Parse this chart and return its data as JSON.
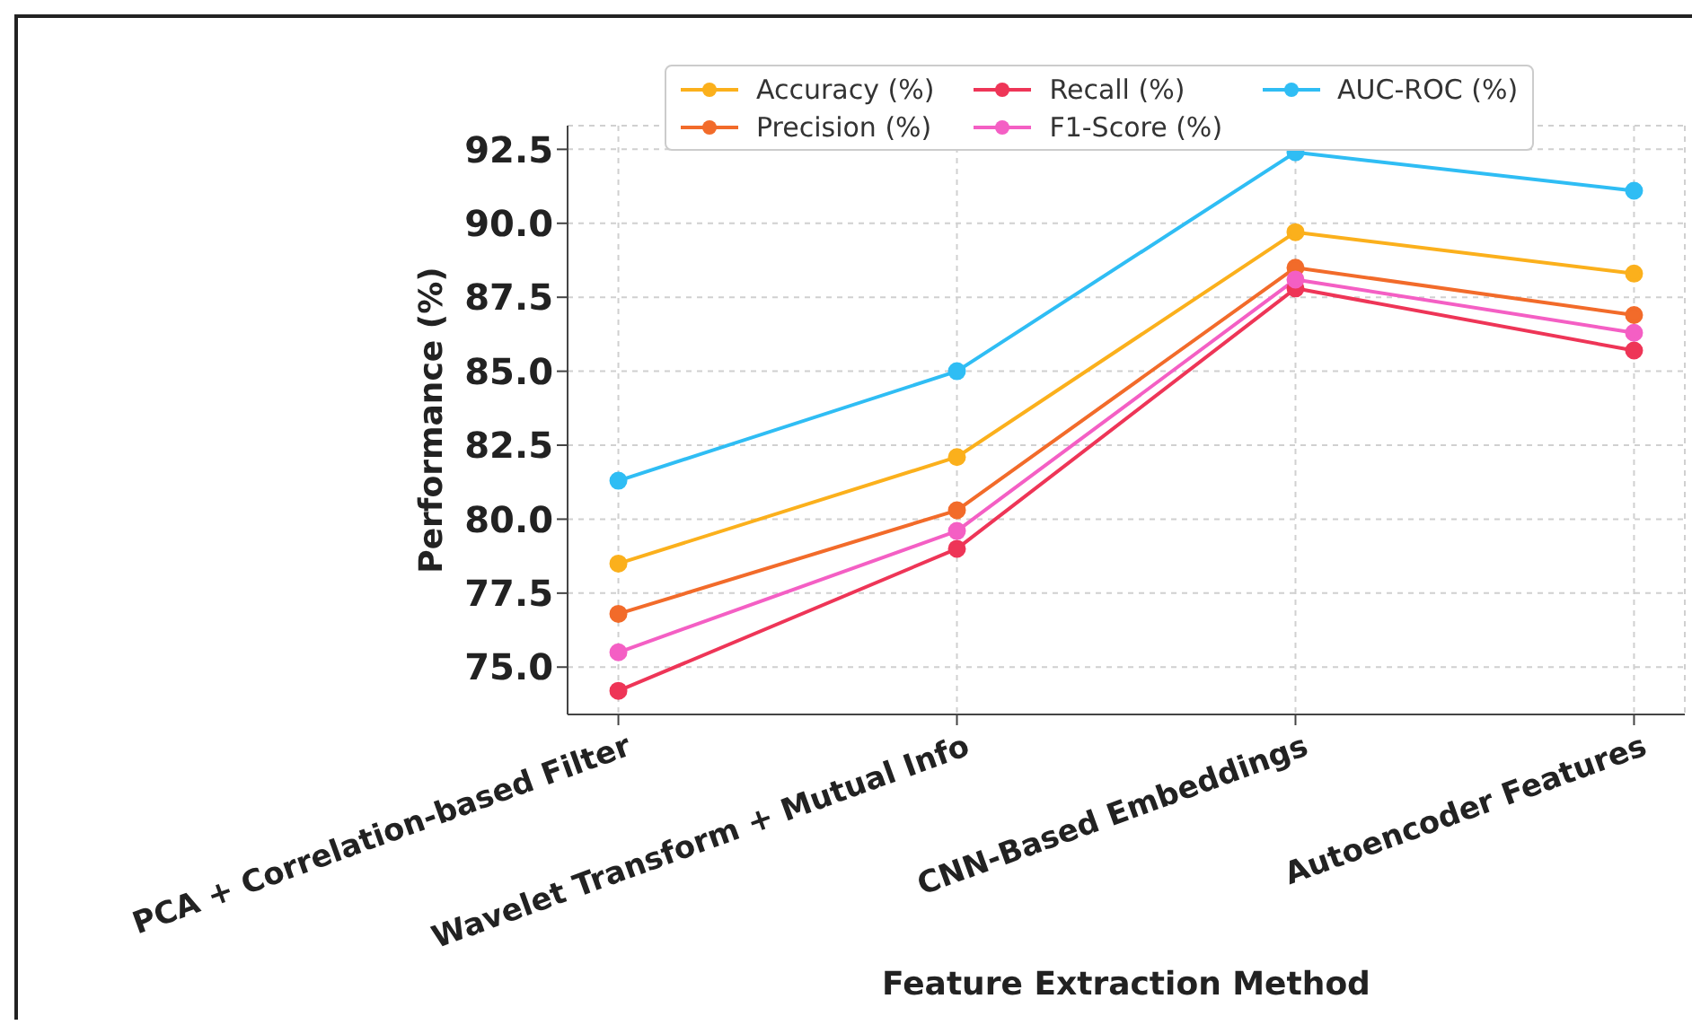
{
  "chart_data": {
    "type": "line",
    "xlabel": "Feature Extraction Method",
    "ylabel": "Performance (%)",
    "categories": [
      "PCA + Correlation-based Filter",
      "Wavelet Transform + Mutual Info",
      "CNN-Based Embeddings",
      "Autoencoder Features"
    ],
    "series": [
      {
        "name": "Accuracy (%)",
        "color": "#fbb01c",
        "values": [
          78.5,
          82.1,
          89.7,
          88.3
        ]
      },
      {
        "name": "Precision (%)",
        "color": "#f26b2a",
        "values": [
          76.8,
          80.3,
          88.5,
          86.9
        ]
      },
      {
        "name": "Recall (%)",
        "color": "#ee3557",
        "values": [
          74.2,
          79.0,
          87.8,
          85.7
        ]
      },
      {
        "name": "F1-Score (%)",
        "color": "#f45fc4",
        "values": [
          75.5,
          79.6,
          88.1,
          86.3
        ]
      },
      {
        "name": "AUC-ROC (%)",
        "color": "#2fbdf4",
        "values": [
          81.3,
          85.0,
          92.4,
          91.1
        ]
      }
    ],
    "ylim": [
      73.4,
      93.3
    ],
    "yticks": [
      {
        "value": 75,
        "label": "75.0"
      },
      77.5,
      {
        "value": 80,
        "label": "80.0"
      },
      82.5,
      {
        "value": 85,
        "label": "85.0"
      },
      87.5,
      {
        "value": 90,
        "label": "90.0"
      },
      92.5
    ],
    "grid": true,
    "legend": "top",
    "marker": "circle",
    "line_style": "solid"
  }
}
